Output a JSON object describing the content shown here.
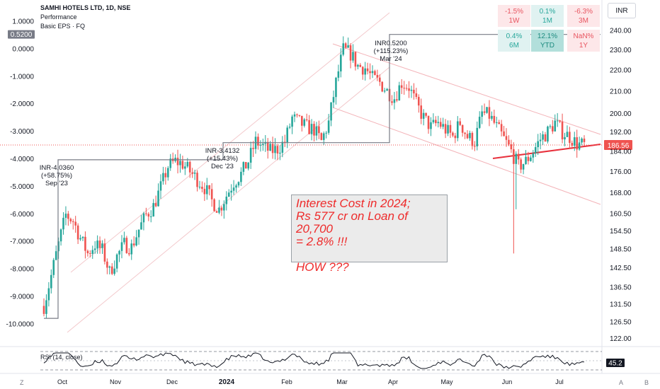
{
  "header": {
    "symbol": "SAMHI HOTELS LTD, 1D, NSE",
    "indicator": "Performance",
    "sub_indicator": "Basic EPS · FQ",
    "currency_button": "INR"
  },
  "performance": [
    {
      "value": "-1.5%",
      "period": "1W",
      "tone": "neg"
    },
    {
      "value": "0.1%",
      "period": "1M",
      "tone": "pos"
    },
    {
      "value": "-6.3%",
      "period": "3M",
      "tone": "neg"
    },
    {
      "value": "0.4%",
      "period": "6M",
      "tone": "pos"
    },
    {
      "value": "12.1%",
      "period": "YTD",
      "tone": "posS"
    },
    {
      "value": "NaN%",
      "period": "1Y",
      "tone": "neu"
    }
  ],
  "note": {
    "line1": "Interest Cost in 2024;",
    "line2": "Rs 577 cr on Loan of 20,700",
    "line3": "= 2.8% !!!",
    "line4": "HOW ???"
  },
  "chart_data": {
    "type": "candlestick",
    "x_axis": {
      "labels": [
        "Oct",
        "Nov",
        "Dec",
        "2024",
        "Feb",
        "Mar",
        "Apr",
        "May",
        "Jun",
        "Jul"
      ]
    },
    "right_axis": {
      "labels": [
        "240.00",
        "230.00",
        "220.00",
        "210.00",
        "200.00",
        "192.00",
        "184.00",
        "176.00",
        "168.00",
        "160.50",
        "154.50",
        "148.50",
        "142.50",
        "136.50",
        "131.50",
        "126.50",
        "122.00"
      ],
      "current_price": "186.56"
    },
    "left_axis": {
      "labels": [
        "1.0000",
        "0.0000",
        "-1.0000",
        "-2.0000",
        "-3.0000",
        "-4.0000",
        "-5.0000",
        "-6.0000",
        "-7.0000",
        "-8.0000",
        "-9.0000",
        "-10.0000"
      ],
      "current_label": "0.5200"
    },
    "eps_labels": [
      {
        "value": "INR-4.0360",
        "change": "(+58.75%)",
        "period": "Sep '23"
      },
      {
        "value": "INR-3.4132",
        "change": "(+15.43%)",
        "period": "Dec '23"
      },
      {
        "value": "INR0.5200",
        "change": "(+115.23%)",
        "period": "Mar '24"
      }
    ],
    "eps_steps": [
      -9.8,
      -4.036,
      -3.4132,
      0.52
    ],
    "rsi": {
      "label": "RSI (14, close)",
      "value": "45.2",
      "levels": [
        70,
        50,
        30
      ]
    },
    "price_path": [
      [
        0,
        131
      ],
      [
        3,
        140
      ],
      [
        6,
        150
      ],
      [
        9,
        160
      ],
      [
        12,
        158
      ],
      [
        15,
        152
      ],
      [
        18,
        147
      ],
      [
        21,
        150
      ],
      [
        24,
        148
      ],
      [
        27,
        141
      ],
      [
        30,
        146
      ],
      [
        33,
        150
      ],
      [
        36,
        149
      ],
      [
        39,
        155
      ],
      [
        42,
        160
      ],
      [
        45,
        163
      ],
      [
        48,
        170
      ],
      [
        51,
        178
      ],
      [
        54,
        180
      ],
      [
        57,
        179
      ],
      [
        60,
        176
      ],
      [
        63,
        173
      ],
      [
        66,
        170
      ],
      [
        69,
        165
      ],
      [
        72,
        162
      ],
      [
        75,
        167
      ],
      [
        78,
        172
      ],
      [
        81,
        175
      ],
      [
        84,
        180
      ],
      [
        87,
        188
      ],
      [
        90,
        186
      ],
      [
        93,
        184
      ],
      [
        96,
        185
      ],
      [
        99,
        188
      ],
      [
        102,
        198
      ],
      [
        105,
        196
      ],
      [
        108,
        194
      ],
      [
        111,
        193
      ],
      [
        114,
        188
      ],
      [
        117,
        196
      ],
      [
        120,
        214
      ],
      [
        123,
        230
      ],
      [
        126,
        228
      ],
      [
        129,
        222
      ],
      [
        132,
        221
      ],
      [
        135,
        216
      ],
      [
        138,
        214
      ],
      [
        141,
        210
      ],
      [
        144,
        207
      ],
      [
        147,
        214
      ],
      [
        150,
        212
      ],
      [
        153,
        204
      ],
      [
        156,
        198
      ],
      [
        159,
        194
      ],
      [
        162,
        196
      ],
      [
        165,
        193
      ],
      [
        168,
        190
      ],
      [
        171,
        196
      ],
      [
        174,
        190
      ],
      [
        177,
        188
      ],
      [
        180,
        200
      ],
      [
        183,
        199
      ],
      [
        186,
        194
      ],
      [
        189,
        189
      ],
      [
        192,
        184
      ],
      [
        195,
        178
      ],
      [
        198,
        180
      ],
      [
        201,
        184
      ],
      [
        204,
        189
      ],
      [
        207,
        192
      ],
      [
        210,
        196
      ],
      [
        213,
        192
      ],
      [
        216,
        190
      ],
      [
        219,
        187
      ],
      [
        222,
        186.5
      ]
    ],
    "price_spikes": [
      {
        "i": 193,
        "low": 147
      },
      {
        "i": 194,
        "low": 162
      }
    ]
  }
}
